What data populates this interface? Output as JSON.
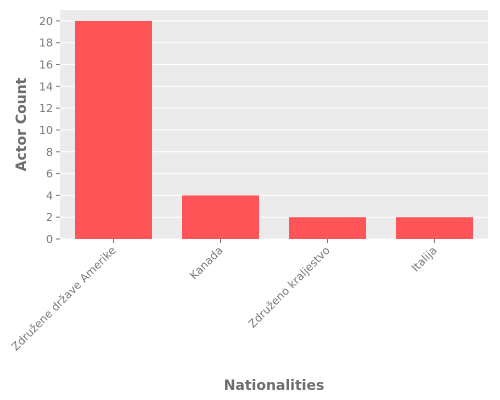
{
  "chart_data": {
    "type": "bar",
    "categories": [
      "Združene države Amerike",
      "Kanada",
      "Združeno kraljestvo",
      "Italija"
    ],
    "values": [
      20,
      4,
      2,
      2
    ],
    "title": "",
    "xlabel": "Nationalities",
    "ylabel": "Actor Count",
    "ylim": [
      0,
      21
    ],
    "yticks": [
      0,
      2,
      4,
      6,
      8,
      10,
      12,
      14,
      16,
      18,
      20
    ],
    "grid": true,
    "colors": {
      "bar": "#ff5558",
      "plot_background": "#ebebeb",
      "grid": "#ffffff"
    }
  }
}
